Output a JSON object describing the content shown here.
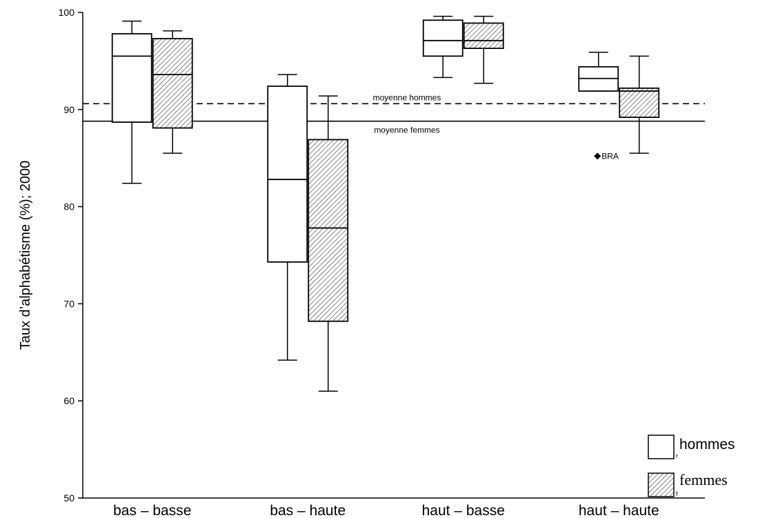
{
  "chart_data": {
    "type": "box",
    "ylabel": "Taux d’alphabétisme (%); 2000",
    "ylim": [
      50,
      100
    ],
    "yticks": [
      "50",
      "60",
      "70",
      "80",
      "90",
      "100"
    ],
    "categories": [
      "bas – basse",
      "bas – haute",
      "haut – basse",
      "haut – haute"
    ],
    "series": [
      {
        "name": "hommes",
        "marker": "r",
        "fill": "#ffffff",
        "boxes": [
          {
            "min": 82.4,
            "q1": 88.7,
            "median": 95.5,
            "q3": 97.8,
            "max": 99.1
          },
          {
            "min": 64.2,
            "q1": 74.3,
            "median": 82.8,
            "q3": 92.4,
            "max": 93.6
          },
          {
            "min": 93.3,
            "q1": 95.5,
            "median": 97.1,
            "q3": 99.2,
            "max": 99.6
          },
          {
            "min": 91.9,
            "q1": 91.9,
            "median": 93.2,
            "q3": 94.4,
            "max": 95.9
          }
        ]
      },
      {
        "name": "femmes",
        "marker": "f",
        "fill": "hatched",
        "boxes": [
          {
            "min": 85.5,
            "q1": 88.1,
            "median": 93.6,
            "q3": 97.3,
            "max": 98.1
          },
          {
            "min": 61.0,
            "q1": 68.2,
            "median": 77.8,
            "q3": 86.9,
            "max": 91.4
          },
          {
            "min": 92.7,
            "q1": 96.3,
            "median": 97.1,
            "q3": 98.9,
            "max": 99.6
          },
          {
            "min": 85.5,
            "q1": 89.2,
            "median": 91.9,
            "q3": 92.2,
            "max": 95.5
          }
        ]
      }
    ],
    "reference_lines": [
      {
        "label": "moyenne hommes",
        "value": 90.6,
        "style": "dashed"
      },
      {
        "label": "moyenne femmes",
        "value": 88.8,
        "style": "solid"
      }
    ],
    "outliers": [
      {
        "label": "BRA",
        "category": "haut – haute",
        "value": 85.2
      }
    ],
    "grid": false,
    "legend_position": "bottom-right"
  }
}
